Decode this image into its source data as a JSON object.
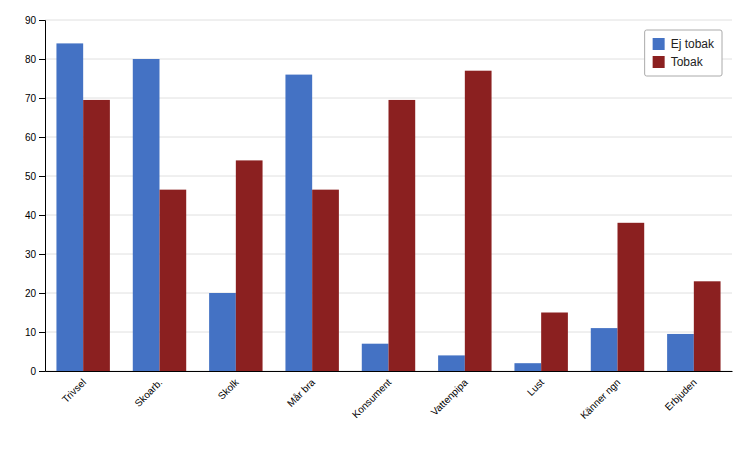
{
  "chart_data": {
    "type": "bar",
    "categories": [
      "Trivsel",
      "Skoarb.",
      "Skolk",
      "Mår bra",
      "Konsument",
      "Vattenpipa",
      "Lust",
      "Känner ngn",
      "Erbjuden"
    ],
    "series": [
      {
        "name": "Ej tobak",
        "color": "#4472C4",
        "values": [
          84,
          80,
          20,
          76,
          7,
          4,
          2,
          11,
          9.5
        ]
      },
      {
        "name": "Tobak",
        "color": "#8B2020",
        "values": [
          69.5,
          46.5,
          54,
          46.5,
          69.5,
          77,
          15,
          38,
          23
        ]
      }
    ],
    "ylim": [
      0,
      90
    ],
    "yticks": [
      0,
      10,
      20,
      30,
      40,
      50,
      60,
      70,
      80,
      90
    ],
    "grid": true,
    "legend": "upper right"
  }
}
